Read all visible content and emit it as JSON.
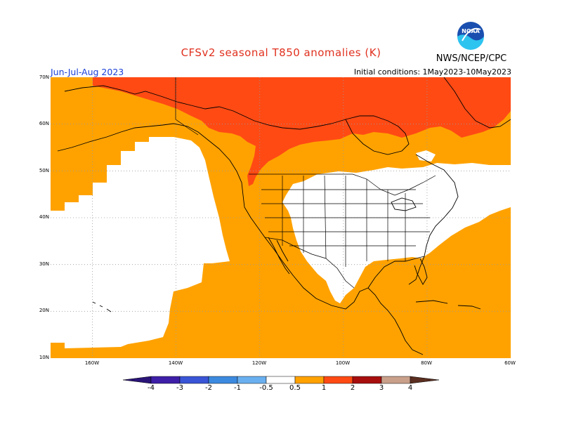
{
  "header": {
    "title": "CFSv2 seasonal T850 anomalies (K)",
    "period": "Jun-Jul-Aug 2023",
    "initial_conditions": "Initial conditions: 1May2023-10May2023",
    "org": "NWS/NCEP/CPC",
    "logo_text": "NOAA"
  },
  "map": {
    "lat_labels": [
      "70N",
      "60N",
      "50N",
      "40N",
      "30N",
      "20N",
      "10N"
    ],
    "lon_labels": [
      "160W",
      "140W",
      "120W",
      "100W",
      "80W",
      "60W"
    ],
    "lat_range": [
      10,
      70
    ],
    "lon_range": [
      -170,
      -60
    ],
    "gridlines": "dotted"
  },
  "legend": {
    "labels": [
      "-4",
      "-3",
      "-2",
      "-1",
      "-0.5",
      "0.5",
      "1",
      "2",
      "3",
      "4"
    ],
    "colors": [
      "#3d1fa8",
      "#3a55d6",
      "#3c8ae0",
      "#6ab0f0",
      "#ffffff",
      "#ffa200",
      "#ff4a14",
      "#a80e0e",
      "#c9a08a",
      "#6e3a28"
    ],
    "under_color": "#2a1478",
    "over_color": "#5a2e20"
  },
  "colors": {
    "anomaly_0_5_to_1": "#ffa200",
    "anomaly_1_to_2": "#ff4a14",
    "neutral": "#ffffff"
  }
}
